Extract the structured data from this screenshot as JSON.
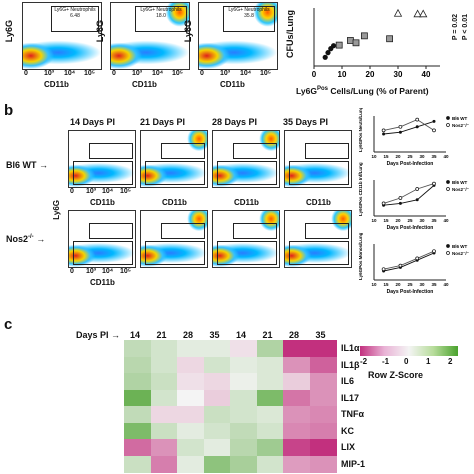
{
  "panel_a": {
    "flow_plots": [
      {
        "gate_label": "Ly6G+ Neutrophils",
        "value": "6.48"
      },
      {
        "gate_label": "Ly6G+ Neutrophils",
        "value": "18.0"
      },
      {
        "gate_label": "Ly6G+ Neutrophils",
        "value": "35.8"
      }
    ],
    "ylabel": "Ly6G",
    "xlabel": "CD11b",
    "ticks_x": [
      "0",
      "10³",
      "10⁴",
      "10⁵"
    ],
    "ticks_y": [
      "0",
      "10³",
      "10⁴",
      "10⁵"
    ]
  },
  "scatter": {
    "ylabel": "CFUs/Lung",
    "xlabel": "Ly6G",
    "xlabel_sup": "Pos",
    "xlabel_rest": " Cells/Lung (% of Parent)",
    "xticks": [
      "0",
      "10",
      "20",
      "30",
      "40"
    ],
    "stat1": "P = 0.02",
    "stat2": "P < 0.01"
  },
  "chart_data": {
    "type": "scatter",
    "xlabel": "Ly6GPos Cells/Lung (% of Parent)",
    "ylabel": "CFUs/Lung",
    "xlim": [
      0,
      45
    ],
    "ylim": [
      0,
      10
    ],
    "series": [
      {
        "marker": "circle",
        "x": [
          4,
          5,
          6,
          7
        ],
        "y": [
          1.5,
          2.3,
          3.0,
          3.5
        ]
      },
      {
        "marker": "square",
        "x": [
          9,
          13,
          15,
          18,
          27
        ],
        "y": [
          3.6,
          4.4,
          4.0,
          5.2,
          4.7
        ]
      },
      {
        "marker": "triangle",
        "x": [
          30,
          37,
          39
        ],
        "y": [
          9.1,
          9.0,
          9.0
        ]
      }
    ]
  },
  "panel_b": {
    "letter": "b",
    "days": [
      "14 Days PI",
      "21 Days PI",
      "28 Days PI",
      "35 Days PI"
    ],
    "rows": [
      {
        "name": "Bl6 WT",
        "arrow": "→"
      },
      {
        "name": "Nos2",
        "sup": "-/-",
        "arrow": "→"
      }
    ],
    "ylabel": "Ly6G",
    "xlabel": "CD11b",
    "ticks_x": [
      "0",
      "10³",
      "10⁴",
      "10⁵"
    ],
    "mini_charts": [
      {
        "ylabel": "Ly6GPos Neuts/Lung",
        "legend": [
          "Bl6 WT",
          "Nos2⁻/⁻"
        ],
        "xlabel": "Days Post-Infection"
      },
      {
        "ylabel": "Ly6GPos CD11b Inf/Lung",
        "legend": [
          "Bl6 WT",
          "Nos2⁻/⁻"
        ],
        "xlabel": "Days Post-Infection"
      },
      {
        "ylabel": "Ly6GPos Monos/Lung",
        "legend": [
          "Bl6 WT",
          "Nos2⁻/⁻"
        ],
        "xlabel": "Days Post-Infection"
      }
    ],
    "mini_xticks": [
      "10",
      "15",
      "20",
      "25",
      "30",
      "35",
      "40"
    ]
  },
  "panel_c": {
    "letter": "c",
    "days_label": "Days PI",
    "days_arrow": "→",
    "columns": [
      "14",
      "21",
      "28",
      "35",
      "14",
      "21",
      "28",
      "35"
    ],
    "rows": [
      "IL1α",
      "IL1β",
      "IL6",
      "IL17",
      "TNFα",
      "KC",
      "LIX",
      "MIP-1"
    ],
    "legend_ticks": [
      "-2",
      "-1",
      "0",
      "1",
      "2"
    ],
    "legend_title": "Row Z-Score",
    "values": [
      [
        0.6,
        0.4,
        0.2,
        0.2,
        -0.2,
        0.8,
        -2.4,
        -2.0
      ],
      [
        0.7,
        0.4,
        -0.3,
        0.4,
        0.2,
        0.3,
        -1.0,
        -1.5
      ],
      [
        0.8,
        0.5,
        -0.2,
        -0.3,
        0.1,
        0.3,
        -0.4,
        -1.0
      ],
      [
        1.6,
        0.4,
        0.0,
        -0.4,
        0.4,
        1.4,
        -1.3,
        -1.0
      ],
      [
        0.6,
        -0.3,
        -0.3,
        0.5,
        0.4,
        0.3,
        -1.0,
        -1.1
      ],
      [
        1.4,
        0.5,
        0.2,
        0.4,
        0.6,
        0.4,
        -1.1,
        -1.2
      ],
      [
        -1.4,
        -1.0,
        0.4,
        0.2,
        0.7,
        1.0,
        -1.8,
        -2.0
      ],
      [
        0.5,
        -1.2,
        0.2,
        1.2,
        0.9,
        0.4,
        -0.9,
        -1.0
      ]
    ]
  }
}
